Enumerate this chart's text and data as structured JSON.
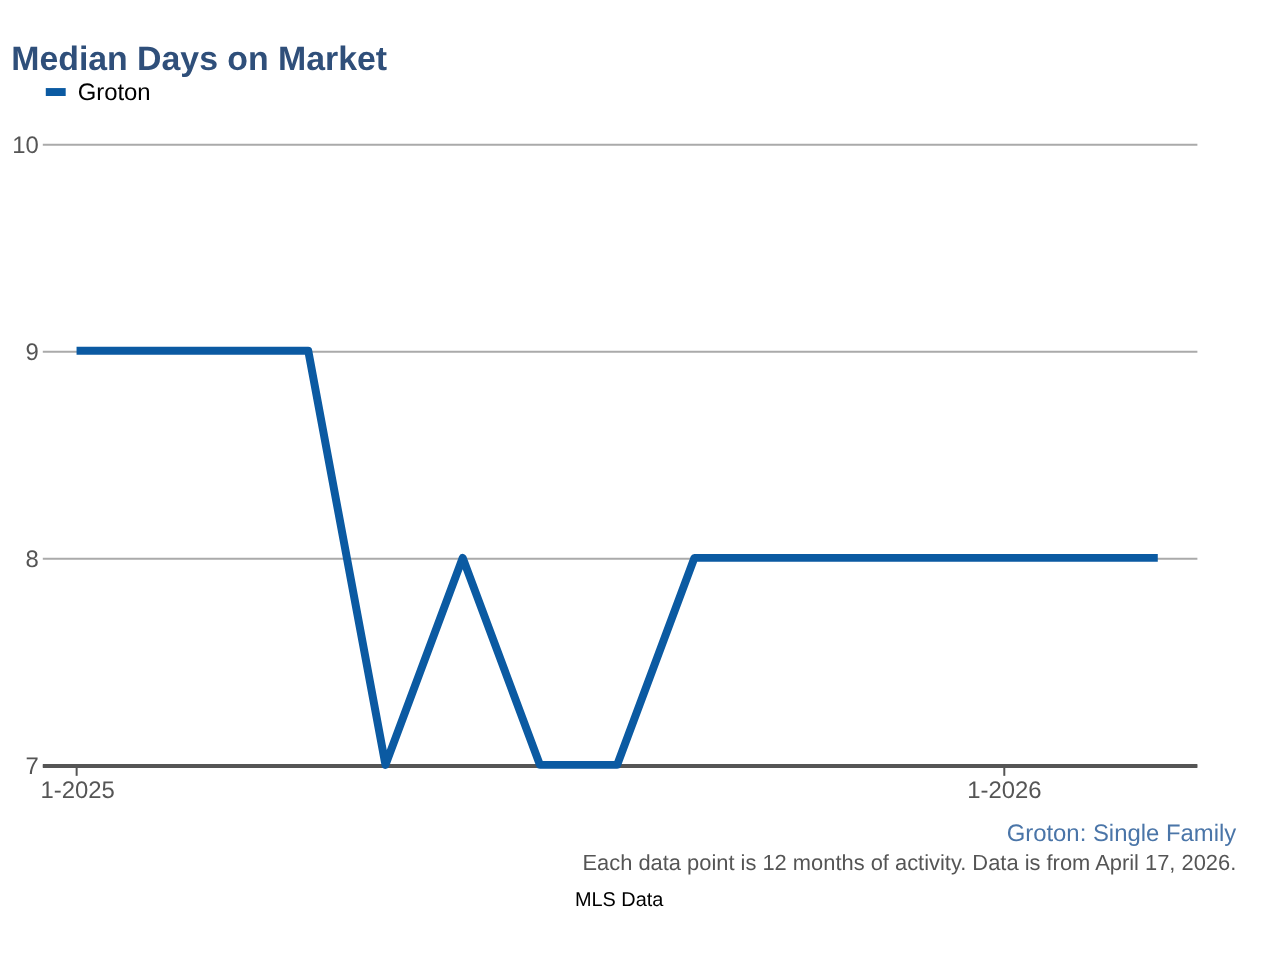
{
  "chart_data": {
    "type": "line",
    "title": "Median Days on Market",
    "categories": [
      "1-2025",
      null,
      null,
      null,
      null,
      null,
      null,
      null,
      null,
      null,
      null,
      null,
      "1-2026",
      null,
      null
    ],
    "series": [
      {
        "name": "Groton",
        "color": "#0b5aa2",
        "values": [
          9,
          9,
          9,
          9,
          7,
          8,
          7,
          7,
          8,
          8,
          8,
          8,
          8,
          8,
          8
        ]
      }
    ],
    "ylim": [
      7,
      10
    ],
    "yticks": [
      7,
      8,
      9,
      10
    ],
    "grid": "y",
    "legend": "top",
    "marker": "none",
    "line_style": "solid",
    "annotations": [
      "Groton: Single Family",
      "Each data point is 12 months of activity. Data is from April 17, 2026.",
      "MLS Data"
    ]
  }
}
